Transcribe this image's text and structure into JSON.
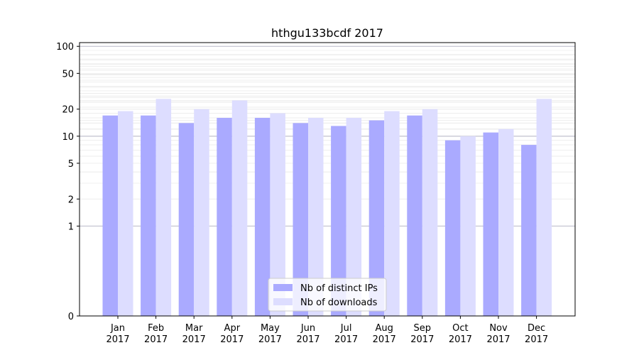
{
  "chart_data": {
    "type": "bar",
    "title": "hthgu133bcdf 2017",
    "xlabel": "",
    "ylabel": "",
    "yscale": "symlog",
    "ylim": [
      0,
      110
    ],
    "yticks": [
      0,
      1,
      2,
      5,
      10,
      20,
      50,
      100
    ],
    "ytick_labels": [
      "0",
      "1",
      "2",
      "5",
      "10",
      "20",
      "50",
      "100"
    ],
    "categories": [
      "Jan\n2017",
      "Feb\n2017",
      "Mar\n2017",
      "Apr\n2017",
      "May\n2017",
      "Jun\n2017",
      "Jul\n2017",
      "Aug\n2017",
      "Sep\n2017",
      "Oct\n2017",
      "Nov\n2017",
      "Dec\n2017"
    ],
    "series": [
      {
        "name": "Nb of distinct IPs",
        "color": "#aaaaff",
        "values": [
          17,
          17,
          14,
          16,
          16,
          14,
          13,
          15,
          17,
          9,
          11,
          8
        ]
      },
      {
        "name": "Nb of downloads",
        "color": "#ddddff",
        "values": [
          19,
          26,
          20,
          25,
          18,
          16,
          16,
          19,
          20,
          10,
          12,
          26
        ]
      }
    ],
    "grid": true,
    "legend_position": "bottom-center"
  }
}
